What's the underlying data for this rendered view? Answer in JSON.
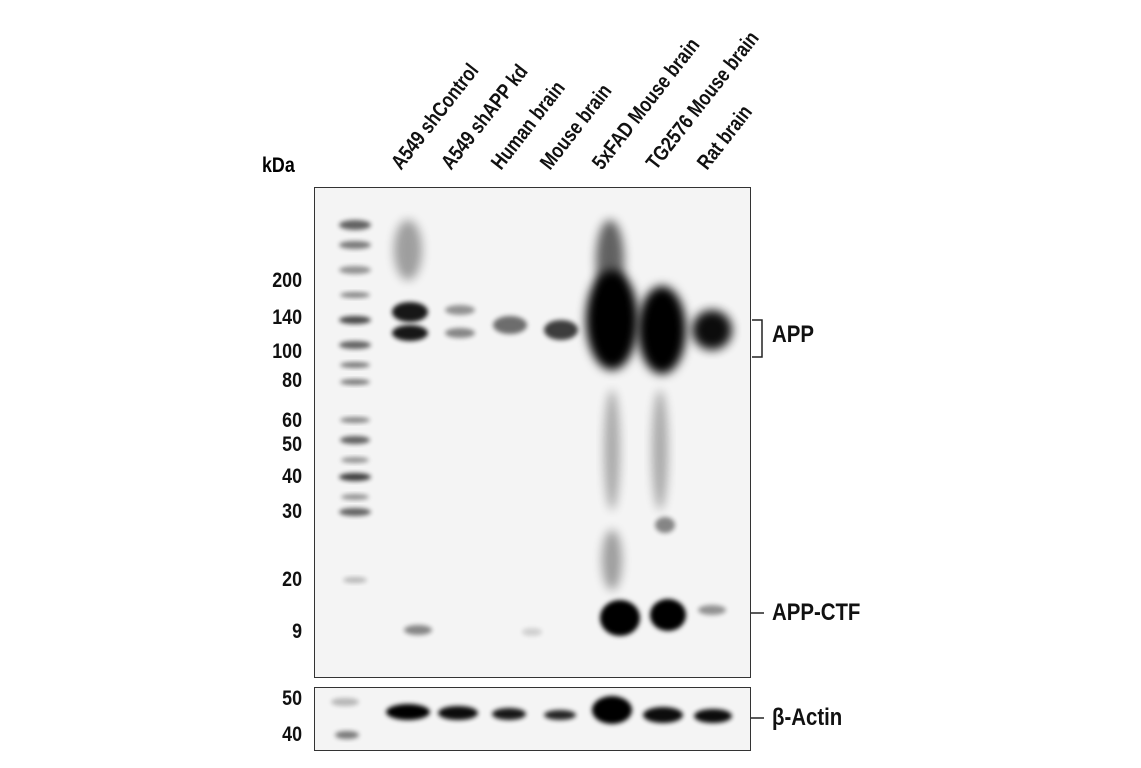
{
  "kda_label": "kDa",
  "lanes": [
    "A549 shControl",
    "A549 shAPP kd",
    "Human brain",
    "Mouse brain",
    "5xFAD Mouse brain",
    "TG2576 Mouse brain",
    "Rat brain"
  ],
  "mw_markers_main": [
    "200",
    "140",
    "100",
    "80",
    "60",
    "50",
    "40",
    "30",
    "20",
    "9"
  ],
  "mw_markers_actin": [
    "50",
    "40"
  ],
  "targets": {
    "app": "APP",
    "app_ctf": "APP-CTF",
    "actin": "β-Actin"
  }
}
